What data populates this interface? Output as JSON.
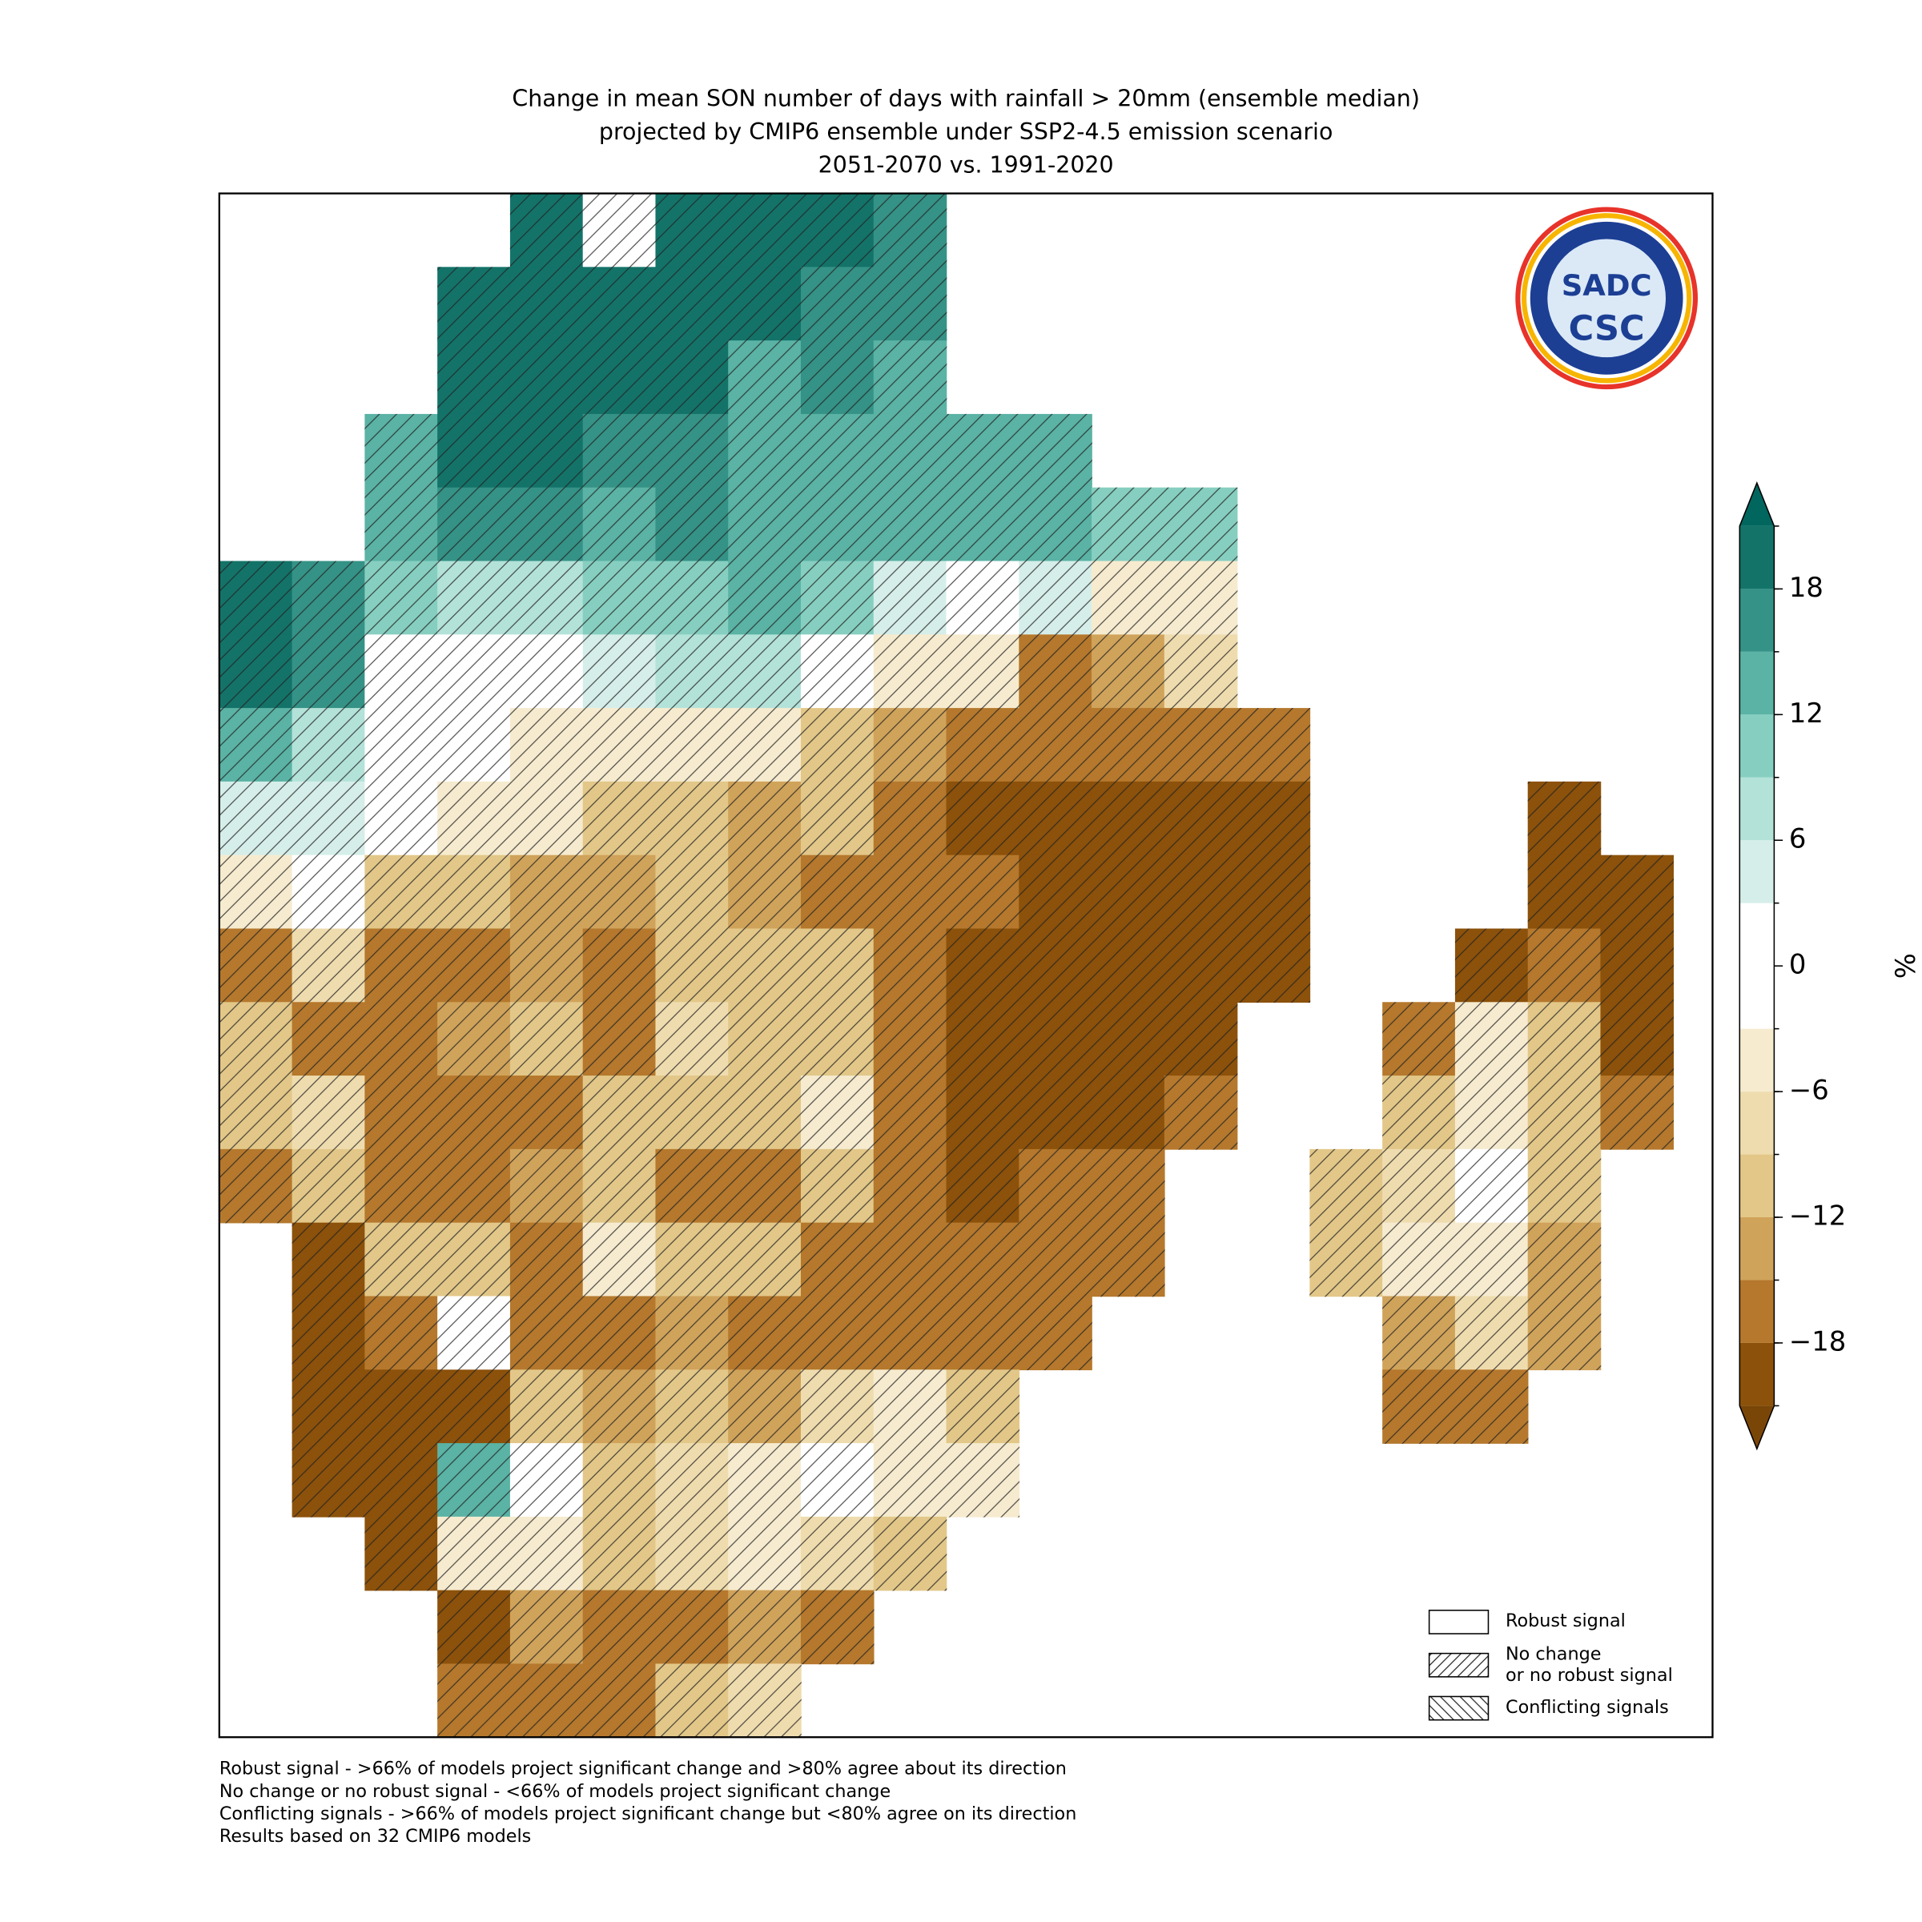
{
  "map": {
    "title": [
      "Change in mean SON number of days with rainfall > 20mm (ensemble median)",
      "projected by CMIP6 ensemble under SSP2-4.5 emission scenario",
      "2051-2070 vs. 1991-2020"
    ],
    "unit": "%",
    "logo": {
      "top": "SADC",
      "bottom": "CSC"
    },
    "colorbar": {
      "levels": [
        -21,
        -18,
        -15,
        -12,
        -9,
        -6,
        -3,
        3,
        6,
        9,
        12,
        15,
        18,
        21
      ],
      "colors": [
        "#7a4608",
        "#8c510a",
        "#b5782c",
        "#d0a35a",
        "#e2c788",
        "#efdcae",
        "#f6ebcf",
        "#ffffff",
        "#d6eee9",
        "#b3e2d9",
        "#86cfc0",
        "#5ab3a5",
        "#359286",
        "#137369",
        "#01665e"
      ],
      "ticks": [
        {
          "value": -18,
          "label": "−18"
        },
        {
          "value": -12,
          "label": "−12"
        },
        {
          "value": -6,
          "label": "−6"
        },
        0,
        6,
        12,
        18
      ]
    },
    "grid": [
      [
        null,
        null,
        null,
        null,
        20,
        0,
        20,
        20,
        20,
        16,
        null,
        null,
        null,
        null,
        null,
        null,
        null,
        null,
        null,
        null,
        null
      ],
      [
        null,
        null,
        null,
        20,
        20,
        20,
        20,
        20,
        16,
        16,
        null,
        null,
        null,
        null,
        null,
        null,
        null,
        null,
        null,
        null,
        null
      ],
      [
        null,
        null,
        null,
        20,
        20,
        20,
        20,
        14,
        16,
        14,
        null,
        null,
        null,
        null,
        null,
        null,
        null,
        null,
        null,
        null,
        null
      ],
      [
        null,
        null,
        14,
        20,
        20,
        16,
        16,
        14,
        12,
        14,
        12,
        12,
        null,
        null,
        null,
        null,
        null,
        null,
        null,
        null,
        null
      ],
      [
        null,
        null,
        12,
        16,
        16,
        14,
        16,
        14,
        12,
        12,
        12,
        12,
        10,
        10,
        null,
        null,
        null,
        null,
        null,
        null,
        null
      ],
      [
        20,
        16,
        10,
        8,
        8,
        10,
        10,
        14,
        10,
        4,
        0,
        4,
        -4,
        -4,
        null,
        null,
        null,
        null,
        null,
        null,
        null
      ],
      [
        20,
        16,
        0,
        0,
        0,
        4,
        8,
        8,
        0,
        -4,
        -6,
        -16,
        -14,
        -8,
        null,
        null,
        null,
        null,
        null,
        null,
        null
      ],
      [
        14,
        6,
        0,
        0,
        -4,
        -6,
        -6,
        -4,
        -10,
        -14,
        -16,
        -18,
        -18,
        -16,
        -18,
        null,
        null,
        null,
        null,
        null,
        null
      ],
      [
        4,
        4,
        0,
        -6,
        -6,
        -10,
        -10,
        -14,
        -12,
        -16,
        -20,
        -20,
        -20,
        -20,
        -20,
        null,
        null,
        null,
        -20,
        null,
        null
      ],
      [
        -6,
        0,
        -10,
        -10,
        -14,
        -14,
        -12,
        -14,
        -18,
        -16,
        -18,
        -20,
        -20,
        -20,
        -20,
        null,
        null,
        null,
        -20,
        -20,
        null
      ],
      [
        -16,
        -8,
        -18,
        -18,
        -14,
        -16,
        -12,
        -10,
        -12,
        -16,
        -20,
        -20,
        -20,
        -20,
        -20,
        null,
        null,
        -20,
        -16,
        -20,
        null
      ],
      [
        -12,
        -16,
        -18,
        -14,
        -10,
        -16,
        -8,
        -10,
        -10,
        -16,
        -20,
        -20,
        -20,
        -20,
        null,
        null,
        -16,
        -4,
        -12,
        -20,
        null
      ],
      [
        -12,
        -8,
        -16,
        -16,
        -18,
        -12,
        -12,
        -10,
        -6,
        -16,
        -20,
        -20,
        -20,
        -18,
        null,
        null,
        -12,
        -4,
        -10,
        -16,
        null
      ],
      [
        -18,
        -10,
        -16,
        -16,
        -14,
        -12,
        -18,
        -18,
        -12,
        -16,
        -20,
        -18,
        -18,
        null,
        null,
        -12,
        -8,
        0,
        -10,
        null,
        null
      ],
      [
        null,
        -20,
        -12,
        -10,
        -16,
        -6,
        -10,
        -12,
        -16,
        -18,
        -18,
        -18,
        -18,
        null,
        null,
        -12,
        -4,
        -4,
        -14,
        null,
        null
      ],
      [
        null,
        -20,
        -18,
        -2,
        -16,
        -18,
        -14,
        -16,
        -16,
        -18,
        -16,
        -18,
        null,
        null,
        null,
        null,
        -14,
        -8,
        -14,
        null,
        null
      ],
      [
        null,
        -20,
        -20,
        -20,
        -12,
        -14,
        -10,
        -14,
        -8,
        -6,
        -12,
        null,
        null,
        null,
        null,
        null,
        -16,
        -16,
        null,
        null,
        null
      ],
      [
        null,
        -20,
        -20,
        14,
        0,
        -10,
        -8,
        -4,
        -2,
        -6,
        -6,
        null,
        null,
        null,
        null,
        null,
        null,
        null,
        null,
        null,
        null
      ],
      [
        null,
        null,
        -20,
        -6,
        -6,
        -10,
        -8,
        -4,
        -8,
        -10,
        null,
        null,
        null,
        null,
        null,
        null,
        null,
        null,
        null,
        null,
        null
      ],
      [
        null,
        null,
        null,
        -20,
        -14,
        -18,
        -16,
        -14,
        -16,
        null,
        null,
        null,
        null,
        null,
        null,
        null,
        null,
        null,
        null,
        null,
        null
      ],
      [
        null,
        null,
        null,
        -18,
        -16,
        -18,
        -12,
        -8,
        null,
        null,
        null,
        null,
        null,
        null,
        null,
        null,
        null,
        null,
        null,
        null,
        null
      ]
    ],
    "legend": [
      {
        "lines": [
          "Robust signal"
        ]
      },
      {
        "lines": [
          "No change",
          "or no robust signal"
        ]
      },
      {
        "lines": [
          "Conflicting signals"
        ]
      }
    ],
    "footnotes": [
      "Robust signal - >66% of models project significant change and >80% agree about its direction",
      "No change or no robust signal - <66% of models project significant change",
      "Conflicting signals - >66% of models project significant change but <80% agree on its direction",
      "Results based on 32 CMIP6 models"
    ]
  }
}
